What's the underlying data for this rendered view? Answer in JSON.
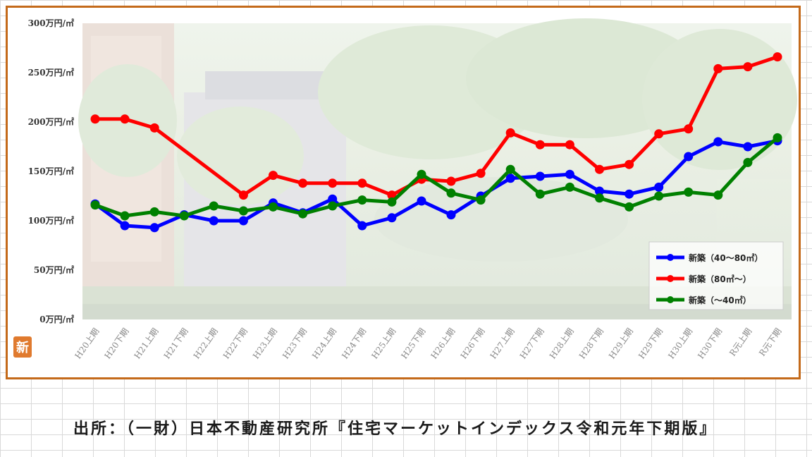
{
  "chart_data": {
    "type": "line",
    "title": "",
    "xlabel": "",
    "ylabel": "",
    "categories": [
      "H20上期",
      "H20下期",
      "H21上期",
      "H21下期",
      "H22上期",
      "H22下期",
      "H23上期",
      "H23下期",
      "H24上期",
      "H24下期",
      "H25上期",
      "H25下期",
      "H26上期",
      "H26下期",
      "H27上期",
      "H27下期",
      "H28上期",
      "H28下期",
      "H29上期",
      "H29下期",
      "H30上期",
      "H30下期",
      "R元上期",
      "R元下期"
    ],
    "y_ticks": [
      "0万円/㎡",
      "50万円/㎡",
      "100万円/㎡",
      "150万円/㎡",
      "200万円/㎡",
      "250万円/㎡",
      "300万円/㎡"
    ],
    "ylim": [
      0,
      300
    ],
    "grid": false,
    "legend_position": "bottom-right",
    "series": [
      {
        "name": "新築（40〜80㎡）",
        "color": "#0000ff",
        "values": [
          117,
          95,
          93,
          106,
          100,
          100,
          118,
          108,
          122,
          95,
          103,
          120,
          106,
          125,
          143,
          145,
          147,
          130,
          127,
          134,
          165,
          180,
          175,
          181
        ]
      },
      {
        "name": "新築（80㎡〜）",
        "color": "#ff0000",
        "values": [
          203,
          203,
          194,
          null,
          null,
          126,
          146,
          138,
          138,
          138,
          126,
          142,
          140,
          148,
          189,
          177,
          177,
          152,
          157,
          188,
          193,
          254,
          256,
          266
        ]
      },
      {
        "name": "新築（〜40㎡）",
        "color": "#008000",
        "values": [
          116,
          105,
          109,
          105,
          115,
          110,
          114,
          107,
          115,
          121,
          119,
          147,
          128,
          121,
          152,
          127,
          134,
          123,
          114,
          125,
          129,
          126,
          159,
          184
        ]
      }
    ]
  },
  "logo_text": "新",
  "source_note": "出所：（一財）日本不動産研究所『住宅マーケットインデックス令和元年下期版』"
}
